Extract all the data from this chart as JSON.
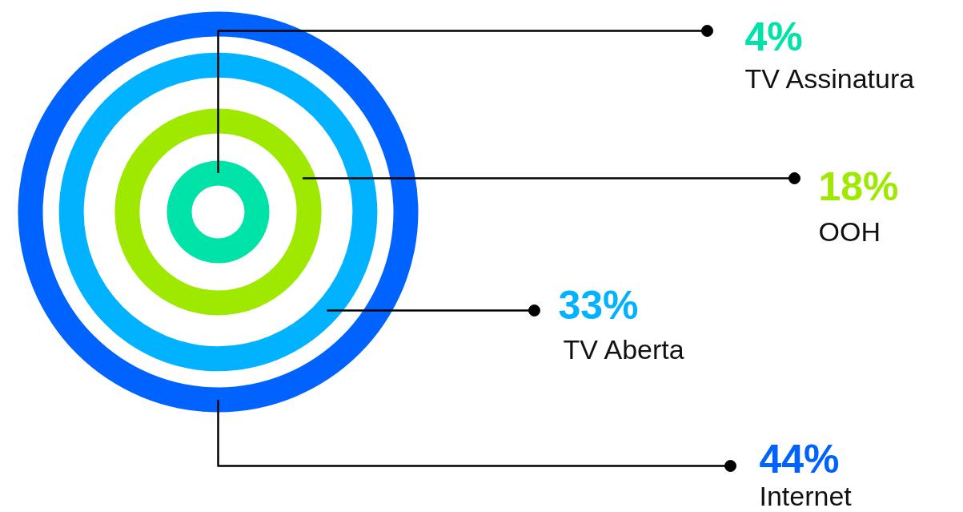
{
  "chart_data": {
    "type": "other",
    "categories": [
      "TV Assinatura",
      "OOH",
      "TV Aberta",
      "Internet"
    ],
    "values": [
      4,
      18,
      33,
      44
    ],
    "value_labels": [
      "4%",
      "18%",
      "33%",
      "44%"
    ],
    "colors": [
      "#00e3a8",
      "#9fe800",
      "#00b2ff",
      "#0063ff"
    ]
  }
}
